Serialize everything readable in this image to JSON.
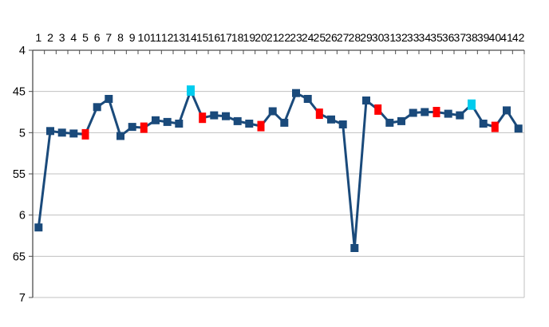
{
  "chart_data": {
    "type": "line",
    "title": "",
    "xlabel": "",
    "ylabel": "",
    "legend": "none",
    "grid": "horizontal",
    "x_labels": [
      "1",
      "2",
      "3",
      "4",
      "5",
      "6",
      "7",
      "8",
      "9",
      "10",
      "11",
      "12",
      "13",
      "14",
      "15",
      "16",
      "17",
      "18",
      "19",
      "20",
      "21",
      "22",
      "23",
      "24",
      "25",
      "26",
      "27",
      "28",
      "29",
      "30",
      "31",
      "32",
      "33",
      "34",
      "35",
      "36",
      "37",
      "38",
      "39",
      "40",
      "41",
      "42"
    ],
    "values": [
      6.15,
      4.98,
      5.0,
      5.01,
      5.02,
      4.69,
      4.59,
      5.04,
      4.93,
      4.94,
      4.85,
      4.87,
      4.89,
      4.49,
      4.82,
      4.79,
      4.8,
      4.86,
      4.89,
      4.92,
      4.74,
      4.88,
      4.52,
      4.59,
      4.77,
      4.84,
      4.9,
      6.4,
      4.61,
      4.72,
      4.88,
      4.86,
      4.76,
      4.75,
      4.75,
      4.77,
      4.79,
      4.66,
      4.89,
      4.93,
      4.73,
      4.95
    ],
    "marker_color_overrides": {
      "5": "red",
      "10": "red",
      "15": "red",
      "20": "red",
      "25": "red",
      "30": "red",
      "35": "red",
      "40": "red",
      "14": "cyan",
      "38": "cyan"
    },
    "y_axis": {
      "min": 4,
      "max": 7,
      "inverted": true,
      "tick_labels": [
        "4",
        "45",
        "5",
        "55",
        "6",
        "65",
        "7"
      ],
      "tick_values": [
        4,
        4.5,
        5,
        5.5,
        6,
        6.5,
        7
      ],
      "label_position": "left"
    },
    "x_axis": {
      "label_position": "top",
      "boundary_ticks": true
    },
    "colors": {
      "line": "#1A4A7B",
      "marker": "#1A4A7B",
      "red": "#FF0000",
      "cyan": "#00CCEE",
      "gridline": "#C0C0C0",
      "plot_border": "#C0C0C0",
      "axis": "#4D4D4D",
      "label": "#000000",
      "background": "#FFFFFF"
    }
  }
}
